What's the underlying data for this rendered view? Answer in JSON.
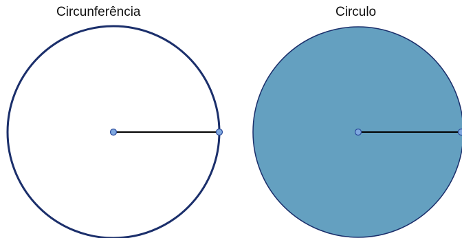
{
  "figures": [
    {
      "id": "circunferencia",
      "label": "Circunferência",
      "filled": false,
      "stroke_color": "#1b2f6b",
      "fill_color": "none"
    },
    {
      "id": "circulo",
      "label": "Circulo",
      "filled": true,
      "stroke_color": "#1b2f6b",
      "fill_color": "#64a0c0"
    }
  ],
  "colors": {
    "point_fill": "#7fa8e0",
    "point_stroke": "#2a4a9a",
    "radius_line": "#000000",
    "background": "#ffffff"
  }
}
